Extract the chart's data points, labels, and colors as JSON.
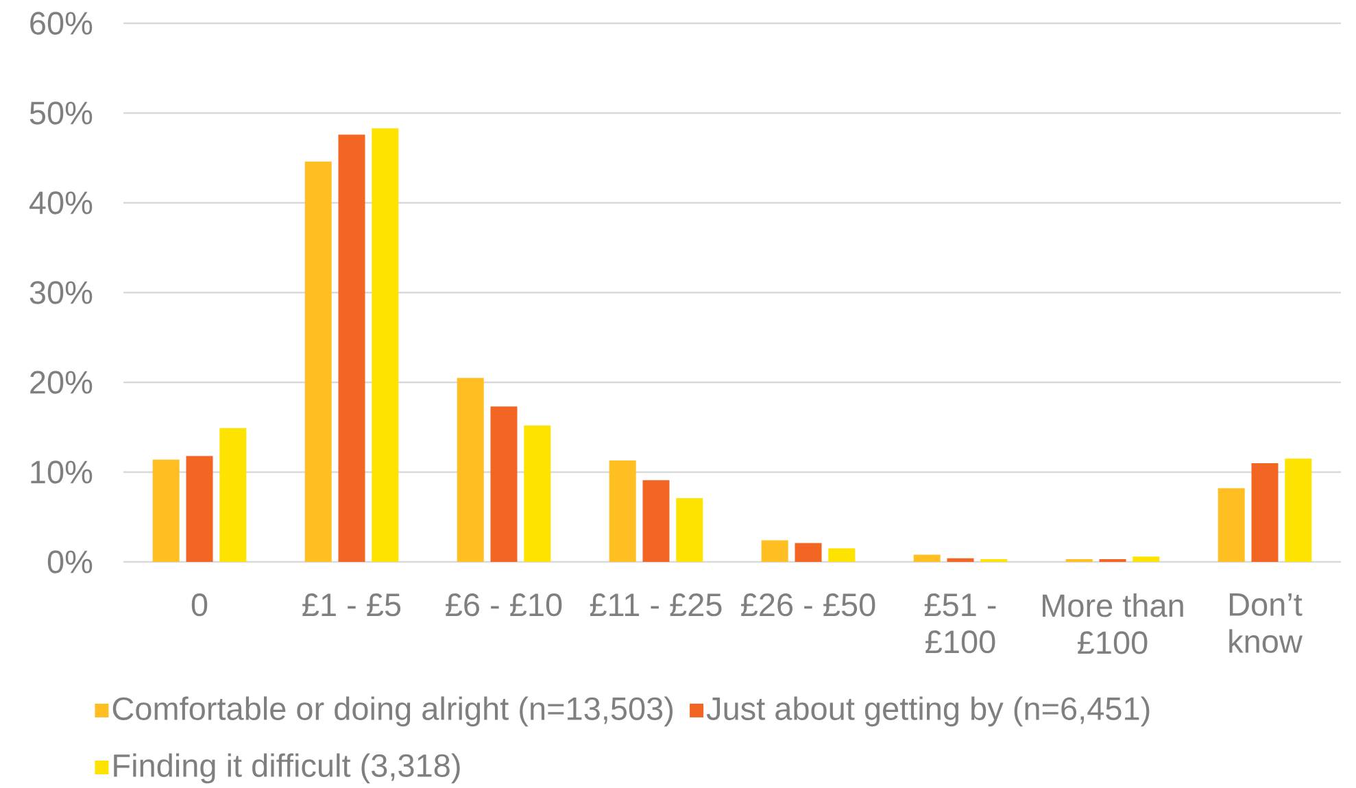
{
  "chart_data": {
    "type": "bar",
    "categories": [
      "0",
      "£1 - £5",
      "£6 - £10",
      "£11 - £25",
      "£26 - £50",
      "£51 - £100",
      "More than £100",
      "Don’t know"
    ],
    "series": [
      {
        "name": "Comfortable or doing alright (n=13,503)",
        "color": "#FFBE22",
        "values": [
          11.4,
          44.6,
          20.5,
          11.3,
          2.4,
          0.8,
          0.3,
          8.2
        ]
      },
      {
        "name": "Just about getting by (n=6,451)",
        "color": "#F26522",
        "values": [
          11.8,
          47.6,
          17.3,
          9.1,
          2.1,
          0.4,
          0.3,
          11.0
        ]
      },
      {
        "name": "Finding it difficult (3,318)",
        "color": "#FFE300",
        "values": [
          14.9,
          48.3,
          15.2,
          7.1,
          1.5,
          0.3,
          0.6,
          11.5
        ]
      }
    ],
    "ylim": [
      0,
      60
    ],
    "yticks": [
      {
        "value": 0,
        "label": "0%"
      },
      {
        "value": 10,
        "label": "10%"
      },
      {
        "value": 20,
        "label": "20%"
      },
      {
        "value": 30,
        "label": "30%"
      },
      {
        "value": 40,
        "label": "40%"
      },
      {
        "value": 50,
        "label": "50%"
      },
      {
        "value": 60,
        "label": "60%"
      }
    ],
    "grid": "y",
    "legend": "bottom"
  }
}
